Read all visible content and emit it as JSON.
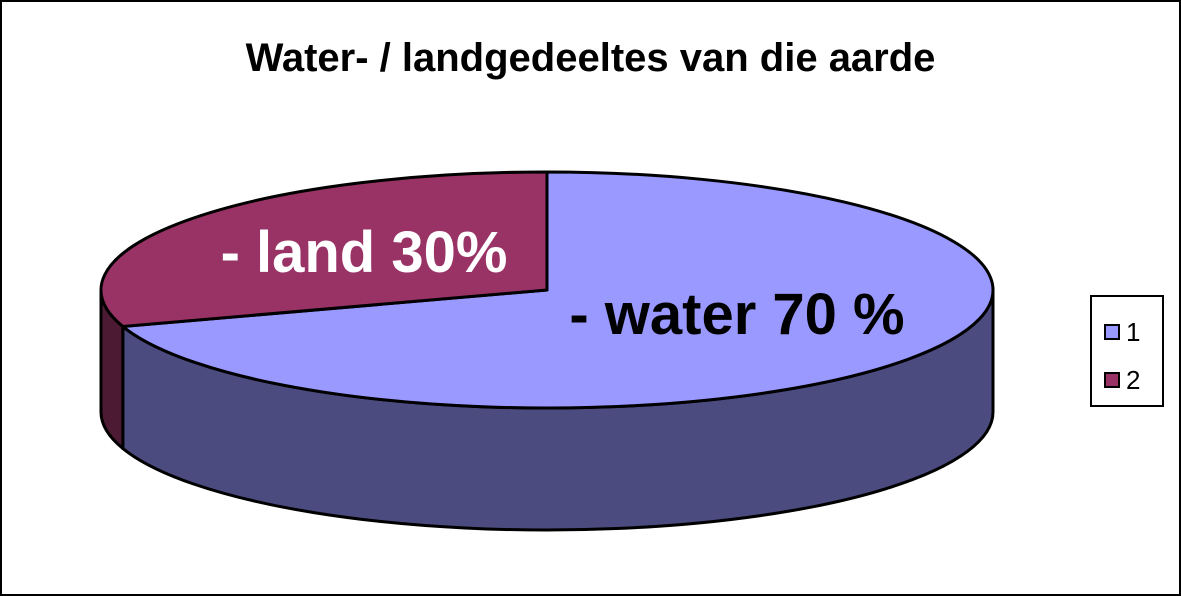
{
  "chart_data": {
    "type": "pie",
    "style": "3d",
    "title": "Water- / landgedeeltes van die aarde",
    "categories": [
      "1",
      "2"
    ],
    "values": [
      70,
      30
    ],
    "slice_labels": [
      "- water 70 %",
      "- land 30%"
    ],
    "colors": {
      "1": {
        "top": "#9999ff",
        "side": "#4b4b80"
      },
      "2": {
        "top": "#993366",
        "side": "#4d1a33"
      }
    },
    "legend": {
      "position": "right",
      "entries": [
        "1",
        "2"
      ]
    }
  }
}
